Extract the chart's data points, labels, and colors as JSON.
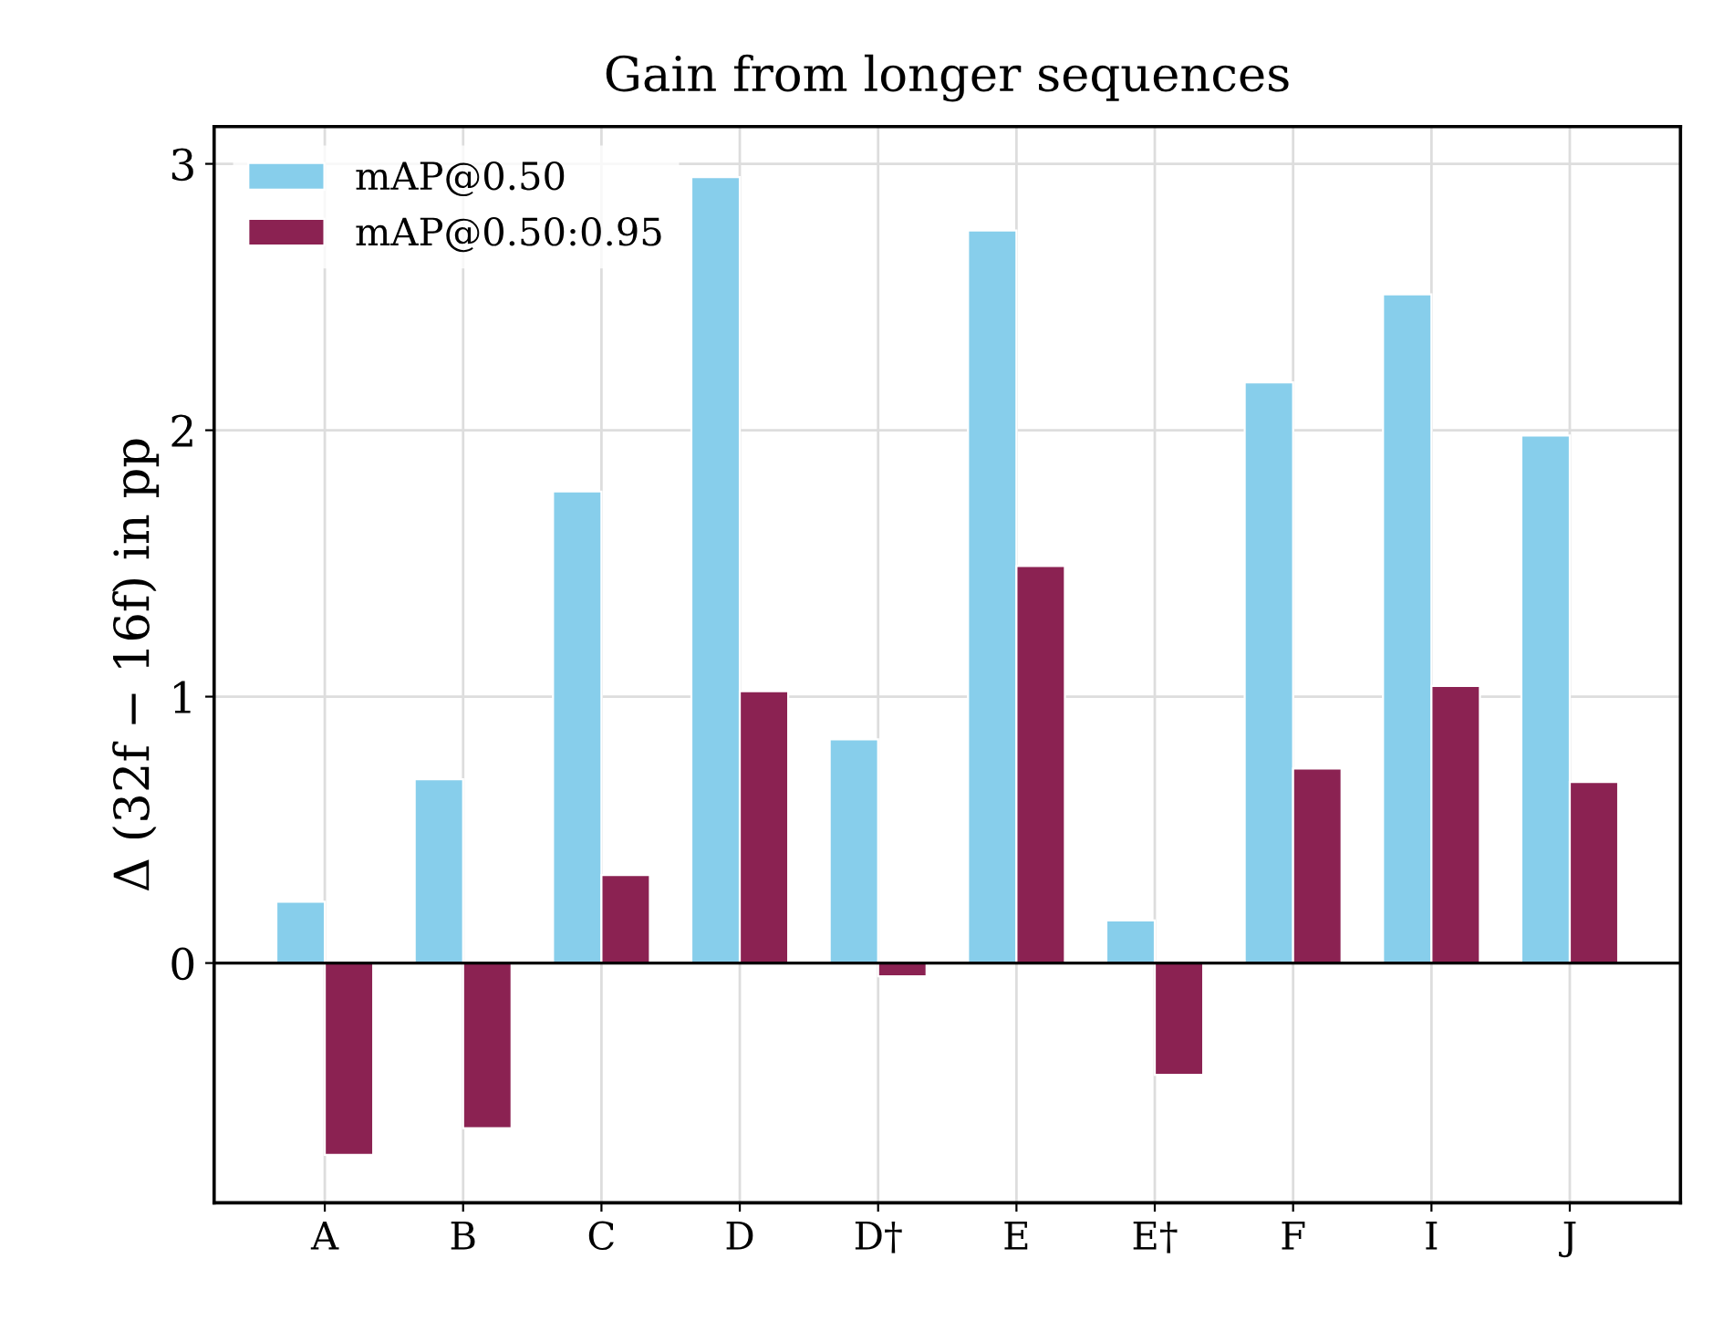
{
  "chart_data": {
    "type": "bar",
    "title": "Gain from longer sequences",
    "ylabel": "Δ (32f − 16f) in pp",
    "categories": [
      "A",
      "B",
      "C",
      "D",
      "D†",
      "E",
      "E†",
      "F",
      "I",
      "J"
    ],
    "series": [
      {
        "name": "mAP@0.50",
        "color": "#87ceeb",
        "values": [
          0.23,
          0.69,
          1.77,
          2.95,
          0.84,
          2.75,
          0.16,
          2.18,
          2.51,
          1.98
        ]
      },
      {
        "name": "mAP@0.50:0.95",
        "color": "#8b2252",
        "values": [
          -0.72,
          -0.62,
          0.33,
          1.02,
          -0.05,
          1.49,
          -0.42,
          0.73,
          1.04,
          0.68
        ]
      }
    ],
    "ylim": [
      -0.9,
      3.14
    ],
    "yticks": [
      0,
      1,
      2,
      3
    ],
    "grid": true,
    "legend": "top left",
    "ref_lines": [
      {
        "axis": "y",
        "value": 0,
        "color": "#000000",
        "line_style": "solid"
      }
    ]
  }
}
